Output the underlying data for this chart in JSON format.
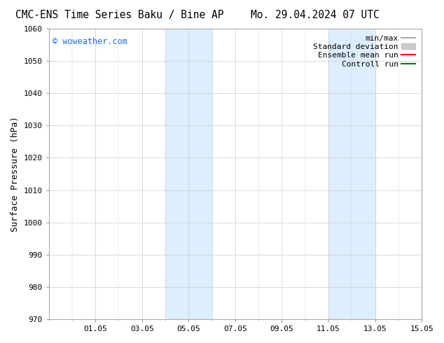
{
  "title_left": "CMC-ENS Time Series Baku / Bine AP",
  "title_right": "Mo. 29.04.2024 07 UTC",
  "ylabel": "Surface Pressure (hPa)",
  "ylim": [
    970,
    1060
  ],
  "yticks": [
    970,
    980,
    990,
    1000,
    1010,
    1020,
    1030,
    1040,
    1050,
    1060
  ],
  "xlim": [
    0,
    16
  ],
  "xtick_positions": [
    2,
    4,
    6,
    8,
    10,
    12,
    14,
    16
  ],
  "xtick_labels": [
    "01.05",
    "03.05",
    "05.05",
    "07.05",
    "09.05",
    "11.05",
    "13.05",
    "15.05"
  ],
  "shaded_regions": [
    {
      "day_start": 5.0,
      "day_end": 7.0,
      "color": "#ddeeff"
    },
    {
      "day_start": 12.0,
      "day_end": 14.0,
      "color": "#ddeeff"
    }
  ],
  "legend_items": [
    {
      "label": "min/max",
      "color": "#aaaaaa",
      "lw": 1.5
    },
    {
      "label": "Standard deviation",
      "color": "#cccccc",
      "lw": 6
    },
    {
      "label": "Ensemble mean run",
      "color": "#ff0000",
      "lw": 1.5
    },
    {
      "label": "Controll run",
      "color": "#008000",
      "lw": 1.5
    }
  ],
  "watermark": "© woweather.com",
  "watermark_color": "#1a6aff",
  "background_color": "#ffffff",
  "grid_color": "#cccccc",
  "title_fontsize": 10.5,
  "label_fontsize": 9,
  "tick_fontsize": 8,
  "legend_fontsize": 8
}
